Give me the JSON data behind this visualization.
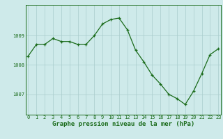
{
  "x": [
    0,
    1,
    2,
    3,
    4,
    5,
    6,
    7,
    8,
    9,
    10,
    11,
    12,
    13,
    14,
    15,
    16,
    17,
    18,
    19,
    20,
    21,
    22,
    23
  ],
  "y": [
    1008.3,
    1008.7,
    1008.7,
    1008.9,
    1008.8,
    1008.8,
    1008.7,
    1008.7,
    1009.0,
    1009.4,
    1009.55,
    1009.6,
    1009.2,
    1008.5,
    1008.1,
    1007.65,
    1007.35,
    1007.0,
    1006.85,
    1006.65,
    1007.1,
    1007.7,
    1008.35,
    1008.55
  ],
  "line_color": "#1a6b1a",
  "marker": "+",
  "marker_size": 3,
  "bg_color": "#ceeaea",
  "grid_color": "#aacccc",
  "xlabel": "Graphe pression niveau de la mer (hPa)",
  "xlabel_fontsize": 6.5,
  "tick_fontsize": 5,
  "ytick_labels": [
    "1007",
    "1008",
    "1009"
  ],
  "yticks": [
    1007,
    1008,
    1009
  ],
  "ylim": [
    1006.3,
    1010.05
  ],
  "xlim": [
    -0.3,
    23.3
  ]
}
